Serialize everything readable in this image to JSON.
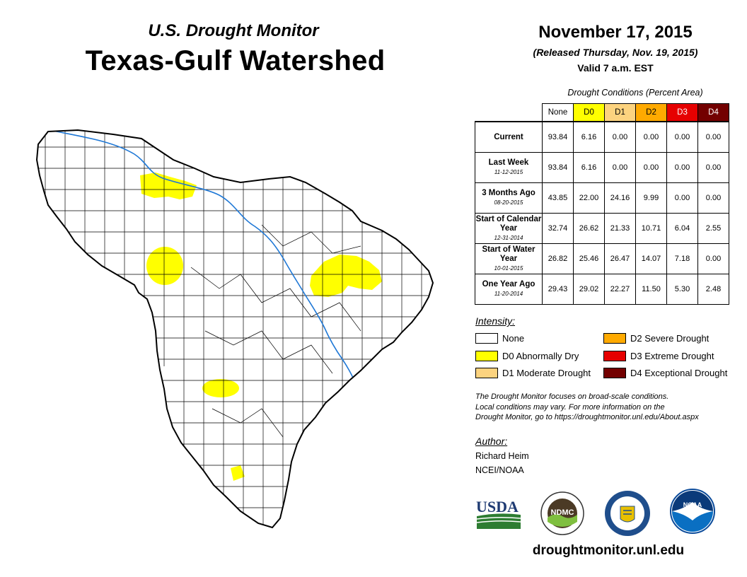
{
  "header": {
    "subtitle": "U.S. Drought Monitor",
    "title": "Texas-Gulf Watershed",
    "date": "November 17, 2015",
    "released": "(Released Thursday, Nov. 19, 2015)",
    "valid": "Valid 7 a.m. EST"
  },
  "conditions": {
    "caption": "Drought Conditions (Percent Area)",
    "columns": [
      "None",
      "D0",
      "D1",
      "D2",
      "D3",
      "D4"
    ],
    "rows": [
      {
        "label": "Current",
        "date": "",
        "values": [
          "93.84",
          "6.16",
          "0.00",
          "0.00",
          "0.00",
          "0.00"
        ]
      },
      {
        "label": "Last Week",
        "date": "11-12-2015",
        "values": [
          "93.84",
          "6.16",
          "0.00",
          "0.00",
          "0.00",
          "0.00"
        ]
      },
      {
        "label": "3 Months Ago",
        "date": "08-20-2015",
        "values": [
          "43.85",
          "22.00",
          "24.16",
          "9.99",
          "0.00",
          "0.00"
        ]
      },
      {
        "label": "Start of Calendar Year",
        "date": "12-31-2014",
        "values": [
          "32.74",
          "26.62",
          "21.33",
          "10.71",
          "6.04",
          "2.55"
        ]
      },
      {
        "label": "Start of Water Year",
        "date": "10-01-2015",
        "values": [
          "26.82",
          "25.46",
          "26.47",
          "14.07",
          "7.18",
          "0.00"
        ]
      },
      {
        "label": "One Year Ago",
        "date": "11-20-2014",
        "values": [
          "29.43",
          "29.02",
          "22.27",
          "11.50",
          "5.30",
          "2.48"
        ]
      }
    ]
  },
  "legend": {
    "title": "Intensity:",
    "items": [
      {
        "label": "None",
        "color": "#ffffff"
      },
      {
        "label": "D0 Abnormally Dry",
        "color": "#ffff00"
      },
      {
        "label": "D1 Moderate Drought",
        "color": "#fcd37f"
      },
      {
        "label": "D2 Severe Drought",
        "color": "#ffaa00"
      },
      {
        "label": "D3 Extreme Drought",
        "color": "#e60000"
      },
      {
        "label": "D4 Exceptional Drought",
        "color": "#730000"
      }
    ]
  },
  "note": {
    "line1": "The Drought Monitor focuses on broad-scale conditions.",
    "line2": "Local conditions may vary. For more information on the",
    "line3": "Drought Monitor, go to https://droughtmonitor.unl.edu/About.aspx"
  },
  "author": {
    "title": "Author:",
    "name": "Richard Heim",
    "org": "NCEI/NOAA"
  },
  "logos": {
    "usda": "USDA",
    "ndmc": "NDMC",
    "noaa": "NOAA"
  },
  "website": "droughtmonitor.unl.edu",
  "map": {
    "region": "Texas-Gulf Watershed",
    "county_fill": "#ffffff",
    "county_stroke": "#000000",
    "river_color": "#1f78d6",
    "drought_areas": [
      {
        "category": "D0",
        "color": "#ffff00",
        "area": "northern Panhandle border"
      },
      {
        "category": "D0",
        "color": "#ffff00",
        "area": "west-central"
      },
      {
        "category": "D0",
        "color": "#ffff00",
        "area": "east-central"
      },
      {
        "category": "D0",
        "color": "#ffff00",
        "area": "south-central"
      },
      {
        "category": "D0",
        "color": "#ffff00",
        "area": "far south"
      }
    ]
  }
}
